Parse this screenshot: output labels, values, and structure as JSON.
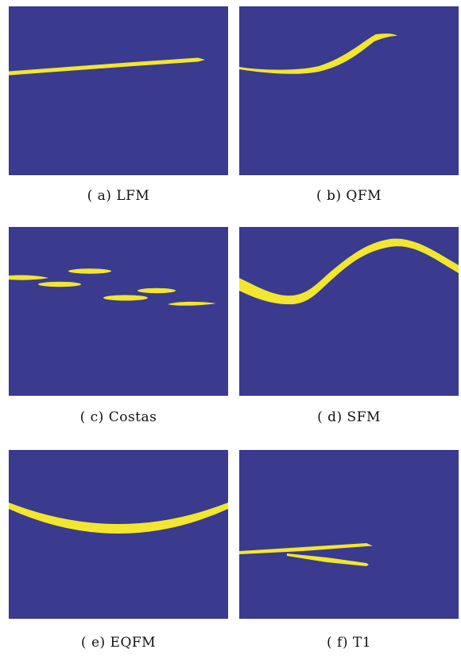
{
  "colors": {
    "background": "#3a3a8f",
    "curve": "#f2e62e"
  },
  "panels": [
    {
      "caption": "( a)  LFM"
    },
    {
      "caption": "( b)  QFM"
    },
    {
      "caption": "( c)  Costas"
    },
    {
      "caption": "( d)  SFM"
    },
    {
      "caption": "( e)  EQFM"
    },
    {
      "caption": "( f)  T1"
    }
  ]
}
